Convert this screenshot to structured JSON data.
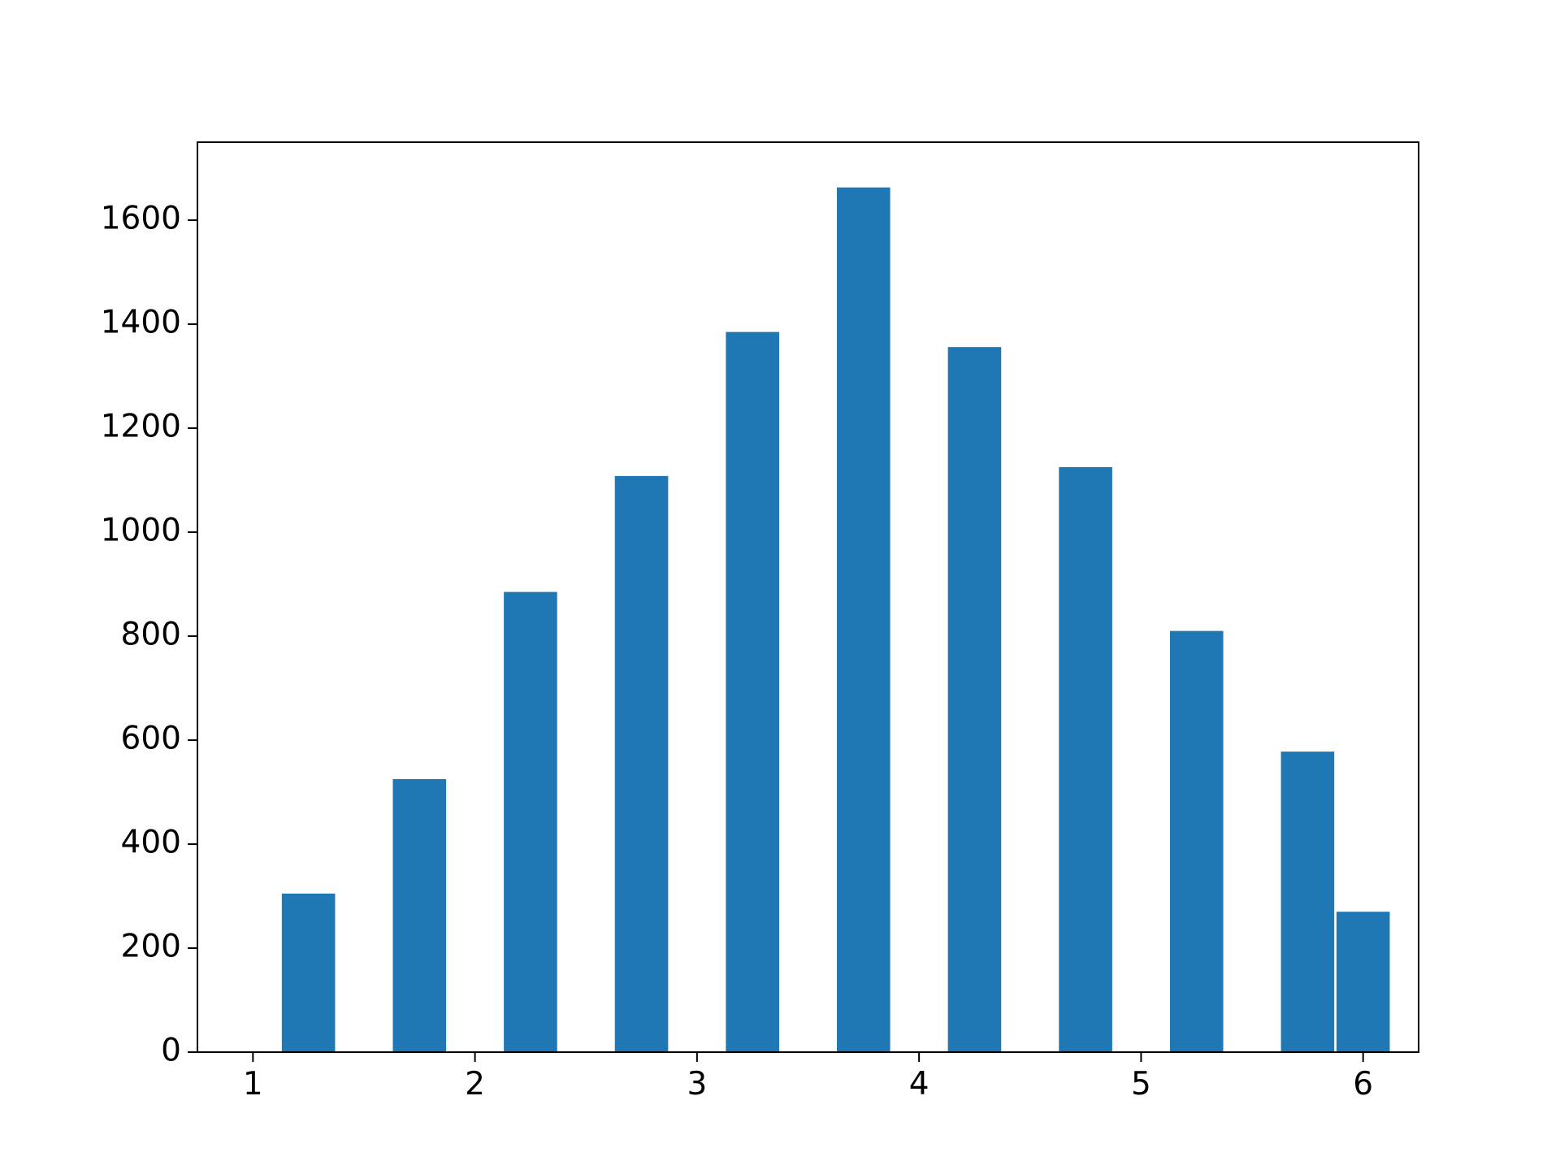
{
  "chart_data": {
    "type": "bar",
    "title": "",
    "xlabel": "",
    "ylabel": "",
    "x": [
      1.25,
      1.75,
      2.25,
      2.75,
      3.25,
      3.75,
      4.25,
      4.75,
      5.25,
      5.75,
      6.0
    ],
    "values": [
      305,
      525,
      885,
      1108,
      1385,
      1663,
      1356,
      1125,
      810,
      578,
      270
    ],
    "bar_width": 0.24,
    "xlim": [
      0.75,
      6.25
    ],
    "ylim": [
      0,
      1750
    ],
    "xticks": [
      1,
      2,
      3,
      4,
      5,
      6
    ],
    "yticks": [
      0,
      200,
      400,
      600,
      800,
      1000,
      1200,
      1400,
      1600
    ],
    "grid": false,
    "legend": "none",
    "bar_color": "#1f77b4"
  }
}
